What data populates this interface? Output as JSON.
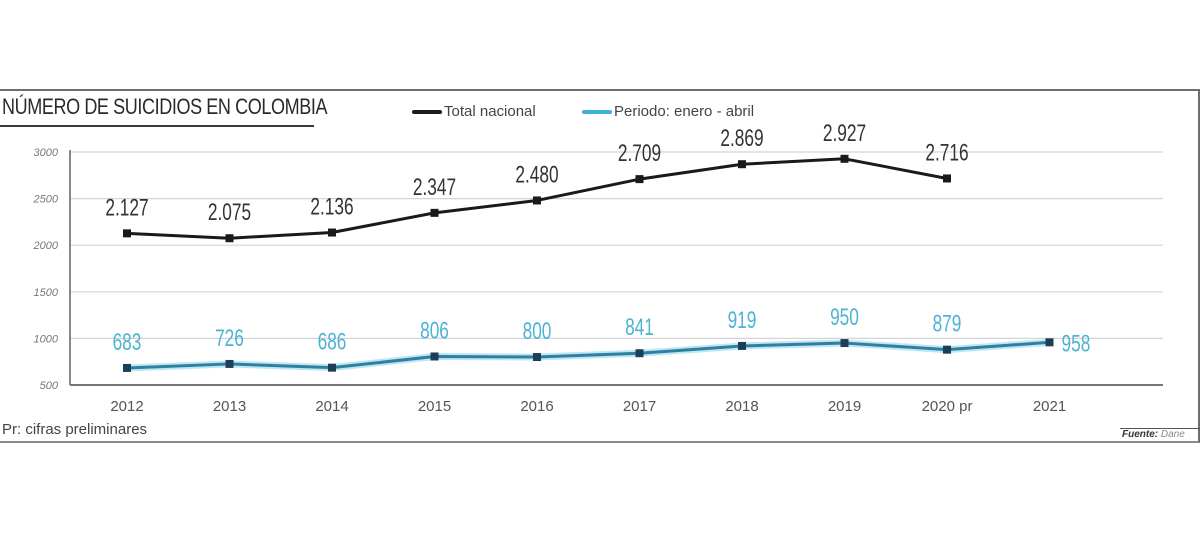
{
  "header": {
    "title": "NÚMERO DE SUICIDIOS EN COLOMBIA"
  },
  "legend": [
    {
      "label": "Total nacional",
      "color": "#1a1a1a"
    },
    {
      "label": "Periodo: enero - abril",
      "color": "#3fb1d6"
    }
  ],
  "footer": {
    "note": "Pr: cifras preliminares",
    "source_label": "Fuente:",
    "source_value": "Dane"
  },
  "chart_data": {
    "type": "line",
    "title": "NÚMERO DE SUICIDIOS EN COLOMBIA",
    "xlabel": "",
    "ylabel": "",
    "categories": [
      "2012",
      "2013",
      "2014",
      "2015",
      "2016",
      "2017",
      "2018",
      "2019",
      "2020 pr",
      "2021"
    ],
    "ylim": [
      500,
      3000
    ],
    "yticks": [
      500,
      1000,
      1500,
      2000,
      2500,
      3000
    ],
    "ytick_labels": [
      "500",
      "1000",
      "1500",
      "2000",
      "2500",
      "3000"
    ],
    "grid": true,
    "legend_position": "top",
    "series": [
      {
        "name": "Total nacional",
        "color": "#1a1a1a",
        "values": [
          2127,
          2075,
          2136,
          2347,
          2480,
          2709,
          2869,
          2927,
          2716,
          null
        ],
        "labels": [
          "2.127",
          "2.075",
          "2.136",
          "2.347",
          "2.480",
          "2.709",
          "2.869",
          "2.927",
          "2.716",
          null
        ]
      },
      {
        "name": "Periodo: enero - abril",
        "color": "#3fb1d6",
        "values": [
          683,
          726,
          686,
          806,
          800,
          841,
          919,
          950,
          879,
          958
        ],
        "labels": [
          "683",
          "726",
          "686",
          "806",
          "800",
          "841",
          "919",
          "950",
          "879",
          "958"
        ]
      }
    ]
  }
}
